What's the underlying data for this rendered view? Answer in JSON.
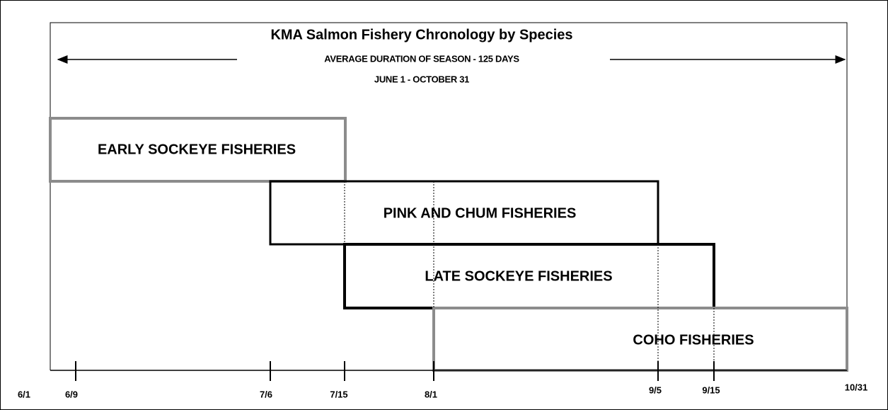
{
  "header": {
    "title": "KMA Salmon Fishery Chronology by Species",
    "subtitle": "AVERAGE DURATION OF SEASON - 125 DAYS",
    "date_range": "JUNE 1 - OCTOBER 31"
  },
  "fisheries": [
    {
      "label": "EARLY SOCKEYE FISHERIES"
    },
    {
      "label": "PINK AND CHUM FISHERIES"
    },
    {
      "label": "LATE SOCKEYE FISHERIES"
    },
    {
      "label": "COHO FISHERIES"
    }
  ],
  "dates": [
    "6/1",
    "6/9",
    "7/6",
    "7/15",
    "8/1",
    "9/5",
    "9/15",
    "10/31"
  ]
}
